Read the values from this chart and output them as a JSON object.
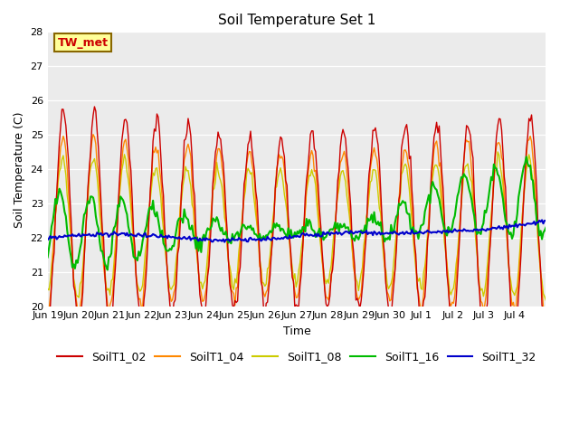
{
  "title": "Soil Temperature Set 1",
  "xlabel": "Time",
  "ylabel": "Soil Temperature (C)",
  "ylim": [
    20.0,
    28.0
  ],
  "yticks": [
    20.0,
    21.0,
    22.0,
    23.0,
    24.0,
    25.0,
    26.0,
    27.0,
    28.0
  ],
  "annotation_text": "TW_met",
  "annotation_bg": "#FFFF99",
  "annotation_fg": "#CC0000",
  "annotation_border": "#886600",
  "colors": {
    "SoilT1_02": "#CC0000",
    "SoilT1_04": "#FF8800",
    "SoilT1_08": "#CCCC00",
    "SoilT1_16": "#00BB00",
    "SoilT1_32": "#0000CC"
  },
  "bg_color": "#EBEBEB",
  "fig_bg": "#FFFFFF",
  "xtick_labels": [
    "Jun 19",
    "Jun 20",
    "Jun 21",
    "Jun 22",
    "Jun 23",
    "Jun 24",
    "Jun 25",
    "Jun 26",
    "Jun 27",
    "Jun 28",
    "Jun 29",
    "Jun 30",
    "Jul 1",
    "Jul 2",
    "Jul 3",
    "Jul 4"
  ],
  "n_days": 16
}
